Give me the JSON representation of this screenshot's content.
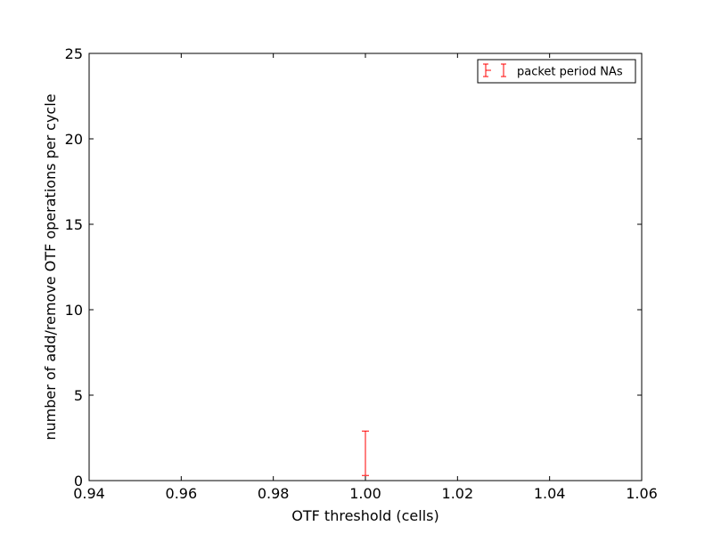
{
  "chart_data": {
    "type": "scatter",
    "title": "",
    "xlabel": "OTF threshold (cells)",
    "ylabel": "number of add/remove OTF operations per cycle",
    "xlim": [
      0.94,
      1.06
    ],
    "ylim": [
      0,
      25
    ],
    "x_ticks": [
      "0.94",
      "0.96",
      "0.98",
      "1.00",
      "1.02",
      "1.04",
      "1.06"
    ],
    "y_ticks": [
      "0",
      "5",
      "10",
      "15",
      "20",
      "25"
    ],
    "grid": false,
    "legend": {
      "position": "top-right"
    },
    "series": [
      {
        "name": "packet period NAs",
        "color": "#ff0000",
        "marker": "none",
        "points": [
          {
            "x": 1.0,
            "y": 1.6,
            "yerr_low": 0.3,
            "yerr_high": 2.9
          }
        ]
      }
    ]
  }
}
